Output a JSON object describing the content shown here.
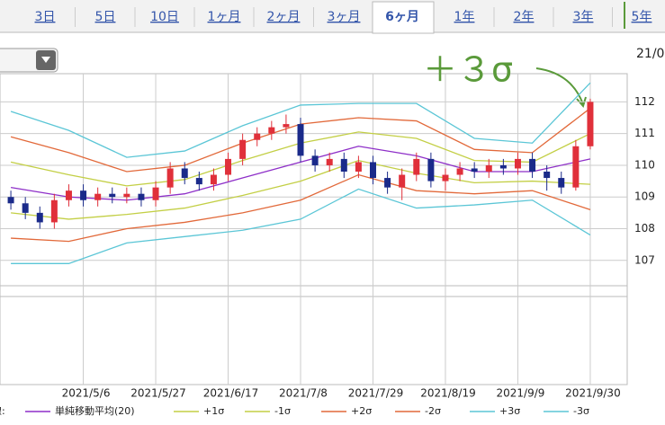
{
  "tabs": [
    "3日",
    "5日",
    "10日",
    "1ヶ月",
    "2ヶ月",
    "3ヶ月",
    "6ヶ月",
    "1年",
    "2年",
    "3年",
    "5年"
  ],
  "active_tab": 6,
  "date_corner": "21/0",
  "chart_data": {
    "type": "candlestick",
    "annotation": "＋３σ",
    "annotation_color": "#5a9a3a",
    "up_color": "#e0303a",
    "down_color": "#1a2a8a",
    "xlim": [
      -0.75,
      42.55
    ],
    "xticks": [
      {
        "value": 5,
        "label": "2021/5/6"
      },
      {
        "value": 10,
        "label": "2021/5/27"
      },
      {
        "value": 15,
        "label": "2021/6/17"
      },
      {
        "value": 20,
        "label": "2021/7/8"
      },
      {
        "value": 25,
        "label": "2021/7/29"
      },
      {
        "value": 30,
        "label": "2021/8/19"
      },
      {
        "value": 35,
        "label": "2021/9/9"
      },
      {
        "value": 40,
        "label": "2021/9/30"
      }
    ],
    "ylim": [
      106.2,
      112.89
    ],
    "yticks": [
      107,
      108,
      109,
      110,
      111,
      112
    ],
    "grid": true,
    "open": [
      109.0,
      108.8,
      108.5,
      108.2,
      108.9,
      109.2,
      108.9,
      109.1,
      109.0,
      109.1,
      108.9,
      109.3,
      109.9,
      109.6,
      109.4,
      109.7,
      110.2,
      110.8,
      111.0,
      111.2,
      111.3,
      110.3,
      110.0,
      110.2,
      109.8,
      110.1,
      109.6,
      109.3,
      109.7,
      110.2,
      109.5,
      109.7,
      109.9,
      109.8,
      110.0,
      109.9,
      110.2,
      109.8,
      109.6,
      109.3,
      110.6
    ],
    "high": [
      109.2,
      109.0,
      108.7,
      109.1,
      109.4,
      109.4,
      109.3,
      109.3,
      109.3,
      109.3,
      109.5,
      110.1,
      110.1,
      109.8,
      109.9,
      110.4,
      111.0,
      111.2,
      111.4,
      111.6,
      111.5,
      110.5,
      110.4,
      110.4,
      110.3,
      110.3,
      109.8,
      109.9,
      110.4,
      110.4,
      109.9,
      110.1,
      110.1,
      110.2,
      110.2,
      110.4,
      110.4,
      110.0,
      109.8,
      110.8,
      112.1
    ],
    "low": [
      108.6,
      108.3,
      108.0,
      108.0,
      108.7,
      108.7,
      108.7,
      108.8,
      108.8,
      108.7,
      108.7,
      109.1,
      109.4,
      109.2,
      109.2,
      109.5,
      110.0,
      110.6,
      110.8,
      111.0,
      110.1,
      109.8,
      109.8,
      109.6,
      109.6,
      109.4,
      109.1,
      108.9,
      109.5,
      109.3,
      109.2,
      109.5,
      109.6,
      109.6,
      109.7,
      109.7,
      109.6,
      109.2,
      109.1,
      109.2,
      110.5
    ],
    "close": [
      108.8,
      108.5,
      108.2,
      108.9,
      109.2,
      108.9,
      109.1,
      109.0,
      109.1,
      108.9,
      109.3,
      109.9,
      109.6,
      109.4,
      109.7,
      110.2,
      110.8,
      111.0,
      111.2,
      111.3,
      110.3,
      110.0,
      110.2,
      109.8,
      110.1,
      109.6,
      109.3,
      109.7,
      110.2,
      109.5,
      109.7,
      109.9,
      109.8,
      110.0,
      109.9,
      110.2,
      109.8,
      109.6,
      109.3,
      110.6,
      112.0
    ],
    "legend_label": "線:",
    "bands": {
      "x": [
        0,
        4,
        8,
        12,
        16,
        20,
        24,
        28,
        32,
        36,
        40
      ],
      "series": [
        {
          "name": "単純移動平均(20)",
          "color": "#8e2fc8",
          "values": [
            109.3,
            109.0,
            108.9,
            109.1,
            109.6,
            110.1,
            110.6,
            110.3,
            109.8,
            109.8,
            110.2
          ]
        },
        {
          "name": "+1σ",
          "color": "#c3cf45",
          "values": [
            110.1,
            109.7,
            109.35,
            109.55,
            110.15,
            110.7,
            111.05,
            110.85,
            110.15,
            110.1,
            111.0
          ]
        },
        {
          "name": "-1σ",
          "color": "#c3cf45",
          "values": [
            108.5,
            108.3,
            108.45,
            108.65,
            109.05,
            109.5,
            110.15,
            109.75,
            109.45,
            109.5,
            109.4
          ]
        },
        {
          "name": "+2σ",
          "color": "#e2693a",
          "values": [
            110.9,
            110.4,
            109.8,
            110.0,
            110.7,
            111.3,
            111.5,
            111.4,
            110.5,
            110.4,
            111.8
          ]
        },
        {
          "name": "-2σ",
          "color": "#e2693a",
          "values": [
            107.7,
            107.6,
            108.0,
            108.2,
            108.5,
            108.9,
            109.7,
            109.2,
            109.1,
            109.2,
            108.6
          ]
        },
        {
          "name": "+3σ",
          "color": "#5bc6d6",
          "values": [
            111.7,
            111.1,
            110.25,
            110.45,
            111.25,
            111.9,
            111.95,
            111.95,
            110.85,
            110.7,
            112.6
          ]
        },
        {
          "name": "-3σ",
          "color": "#5bc6d6",
          "values": [
            106.9,
            106.9,
            107.55,
            107.75,
            107.95,
            108.3,
            109.25,
            108.65,
            108.75,
            108.9,
            107.8
          ]
        }
      ]
    }
  }
}
